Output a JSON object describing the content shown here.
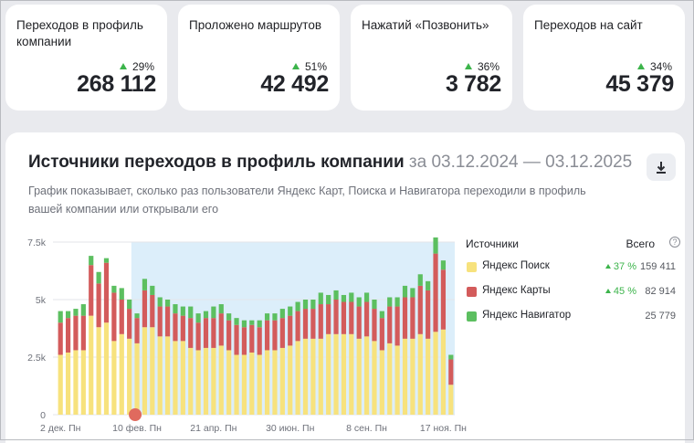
{
  "kpis": [
    {
      "title": "Переходов в профиль компании",
      "delta": "29%",
      "value": "268 112"
    },
    {
      "title": "Проложено маршрутов",
      "delta": "51%",
      "value": "42 492"
    },
    {
      "title": "Нажатий «Позвонить»",
      "delta": "36%",
      "value": "3 782"
    },
    {
      "title": "Переходов на сайт",
      "delta": "34%",
      "value": "45 379"
    }
  ],
  "panel": {
    "title": "Источники переходов в профиль компании",
    "range": "за 03.12.2024 — 03.12.2025",
    "description": "График показывает, сколько раз пользователи Яндекс Карт, Поиска и Навигатора переходили в профиль вашей компании или открывали его",
    "download_icon": "download-icon"
  },
  "legend": {
    "sources_label": "Источники",
    "total_label": "Всего",
    "info_icon": "info-icon",
    "items": [
      {
        "name": "Яндекс Поиск",
        "delta": "37 %",
        "total": "159 411",
        "color": "#f7e27d"
      },
      {
        "name": "Яндекс Карты",
        "delta": "45 %",
        "total": "82 914",
        "color": "#d35b5b"
      },
      {
        "name": "Яндекс Навигатор",
        "delta": "",
        "total": "25 779",
        "color": "#5cbf60"
      }
    ]
  },
  "chart_data": {
    "type": "bar",
    "stacked": true,
    "ylim": [
      0,
      7500
    ],
    "yticks": [
      "0",
      "2.5k",
      "5k",
      "7.5k"
    ],
    "xticks": [
      "2 дек. Пн",
      "10 фев. Пн",
      "21 апр. Пн",
      "30 июн. Пн",
      "8 сен. Пн",
      "17 ноя. Пн"
    ],
    "highlight_start_index": 10,
    "highlight_color": "#dceefa",
    "marker_index": 10,
    "marker_color": "#e06a5e",
    "series": [
      {
        "name": "Яндекс Поиск",
        "color": "#f7e27d",
        "values": [
          2600,
          2700,
          2800,
          2800,
          4300,
          3800,
          4000,
          3200,
          3500,
          3300,
          3100,
          3800,
          3800,
          3400,
          3400,
          3200,
          3200,
          2900,
          2800,
          2900,
          2900,
          3000,
          2800,
          2600,
          2600,
          2700,
          2600,
          2800,
          2800,
          2900,
          3000,
          3200,
          3300,
          3300,
          3300,
          3500,
          3500,
          3500,
          3500,
          3300,
          3400,
          3200,
          2800,
          3100,
          3000,
          3300,
          3300,
          3500,
          3300,
          3600,
          3700,
          1300
        ]
      },
      {
        "name": "Яндекс Карты",
        "color": "#d35b5b",
        "values": [
          1400,
          1500,
          1500,
          1500,
          2200,
          1900,
          2600,
          2100,
          1500,
          1300,
          1100,
          1600,
          1400,
          1300,
          1300,
          1200,
          1100,
          1300,
          1200,
          1300,
          1300,
          1400,
          1300,
          1300,
          1200,
          1200,
          1200,
          1300,
          1300,
          1300,
          1300,
          1300,
          1300,
          1300,
          1500,
          1300,
          1500,
          1400,
          1400,
          1400,
          1500,
          1400,
          1400,
          1600,
          1700,
          1800,
          1800,
          2100,
          2100,
          3400,
          2600,
          1100
        ]
      },
      {
        "name": "Яндекс Навигатор",
        "color": "#5cbf60",
        "values": [
          500,
          300,
          300,
          500,
          400,
          500,
          200,
          300,
          500,
          400,
          200,
          500,
          400,
          400,
          300,
          400,
          400,
          500,
          400,
          300,
          500,
          400,
          300,
          300,
          300,
          200,
          300,
          300,
          300,
          400,
          400,
          400,
          400,
          400,
          500,
          400,
          400,
          300,
          400,
          400,
          400,
          400,
          300,
          400,
          400,
          500,
          400,
          500,
          400,
          700,
          400,
          200
        ]
      }
    ]
  }
}
